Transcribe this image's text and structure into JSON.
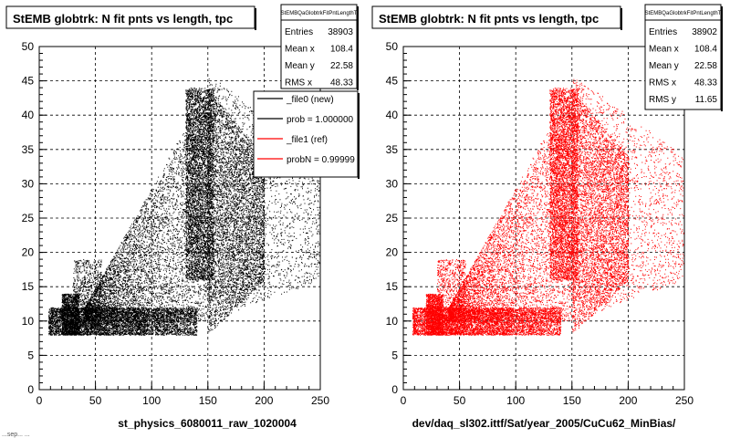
{
  "footer_fragment": "...sep... ...",
  "chart_data": [
    {
      "type": "scatter",
      "title": "StEMB globtrk: N fit pnts vs length, tpc",
      "xlabel": "st_physics_6080011_raw_1020004",
      "ylabel": "",
      "xlim": [
        0,
        250
      ],
      "ylim": [
        0,
        50
      ],
      "xticks": [
        "0",
        "50",
        "100",
        "150",
        "200",
        "250"
      ],
      "yticks": [
        "0",
        "5",
        "10",
        "15",
        "20",
        "25",
        "30",
        "35",
        "40",
        "45",
        "50"
      ],
      "grid": true,
      "marker_color": "#000000",
      "stats": {
        "name": "StEMBQaGlobtrkFitPntLengthT",
        "rows": [
          {
            "label": "Entries",
            "value": "38903"
          },
          {
            "label": "Mean x",
            "value": "108.4"
          },
          {
            "label": "Mean y",
            "value": "22.58"
          },
          {
            "label": "RMS x",
            "value": "48.33"
          }
        ]
      },
      "legend": {
        "placement": "top-right",
        "entries": [
          {
            "label": "_file0 (new)",
            "color": "#000000"
          },
          {
            "label": "prob = 1.000000",
            "color": "#000000"
          },
          {
            "label": "_file1 (ref)",
            "color": "#ff0000"
          },
          {
            "label": "probN = 0.99999",
            "color": "#ff0000"
          }
        ]
      },
      "regions": [
        {
          "x": [
            8,
            95
          ],
          "y": [
            8,
            12
          ],
          "n": 4200,
          "shape": "uniform"
        },
        {
          "x": [
            95,
            140
          ],
          "y": [
            8,
            12
          ],
          "n": 1500,
          "shape": "uniform"
        },
        {
          "x": [
            20,
            35
          ],
          "y": [
            8,
            14
          ],
          "n": 1400,
          "shape": "uniform"
        },
        {
          "x": [
            30,
            55
          ],
          "y": [
            8,
            19
          ],
          "n": 900,
          "shape": "uniform"
        },
        {
          "x": [
            130,
            155
          ],
          "y": [
            16,
            44
          ],
          "n": 4600,
          "shape": "uniform"
        },
        {
          "x": [
            150,
            200
          ],
          "y": [
            8,
            44
          ],
          "n": 4500,
          "shape": "triangle"
        },
        {
          "x": [
            40,
            150
          ],
          "y": [
            10,
            44
          ],
          "n": 6000,
          "shape": "diag"
        },
        {
          "x": [
            150,
            250
          ],
          "y": [
            10,
            46
          ],
          "n": 2200,
          "shape": "spread"
        }
      ]
    },
    {
      "type": "scatter",
      "title": "StEMB globtrk: N fit pnts vs length, tpc",
      "xlabel": "dev/daq_sl302.ittf/Sat/year_2005/CuCu62_MinBias/",
      "ylabel": "",
      "xlim": [
        0,
        250
      ],
      "ylim": [
        0,
        50
      ],
      "xticks": [
        "0",
        "50",
        "100",
        "150",
        "200",
        "250"
      ],
      "yticks": [
        "0",
        "5",
        "10",
        "15",
        "20",
        "25",
        "30",
        "35",
        "40",
        "45",
        "50"
      ],
      "grid": true,
      "marker_color": "#ff0000",
      "stats": {
        "name": "StEMBQaGlobtrkFitPntLengthT",
        "rows": [
          {
            "label": "Entries",
            "value": "38902"
          },
          {
            "label": "Mean x",
            "value": "108.4"
          },
          {
            "label": "Mean y",
            "value": "22.58"
          },
          {
            "label": "RMS x",
            "value": "48.33"
          },
          {
            "label": "RMS y",
            "value": "11.65"
          }
        ]
      },
      "regions": [
        {
          "x": [
            8,
            95
          ],
          "y": [
            8,
            12
          ],
          "n": 4200,
          "shape": "uniform"
        },
        {
          "x": [
            95,
            140
          ],
          "y": [
            8,
            12
          ],
          "n": 1500,
          "shape": "uniform"
        },
        {
          "x": [
            20,
            35
          ],
          "y": [
            8,
            14
          ],
          "n": 1400,
          "shape": "uniform"
        },
        {
          "x": [
            30,
            55
          ],
          "y": [
            8,
            19
          ],
          "n": 900,
          "shape": "uniform"
        },
        {
          "x": [
            130,
            155
          ],
          "y": [
            16,
            44
          ],
          "n": 4600,
          "shape": "uniform"
        },
        {
          "x": [
            150,
            200
          ],
          "y": [
            8,
            44
          ],
          "n": 4500,
          "shape": "triangle"
        },
        {
          "x": [
            40,
            150
          ],
          "y": [
            10,
            44
          ],
          "n": 6000,
          "shape": "diag"
        },
        {
          "x": [
            150,
            250
          ],
          "y": [
            10,
            46
          ],
          "n": 2200,
          "shape": "spread"
        }
      ]
    }
  ]
}
